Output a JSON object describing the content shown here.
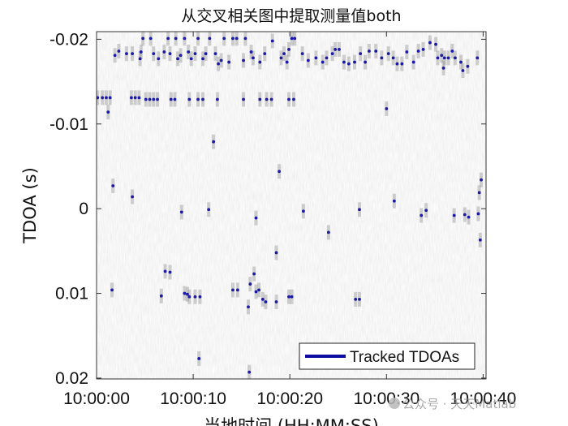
{
  "chart_data": {
    "type": "scatter",
    "title": "从交叉相关图中提取测量值both",
    "xlabel": "当地时间 (HH:MM:SS)",
    "ylabel": "TDOA (s)",
    "xlim": [
      0,
      40.3
    ],
    "ylim": [
      -0.0209,
      0.0201
    ],
    "y_direction": "reversed",
    "grid": false,
    "background": "grayscale cross-correlation image",
    "x_ticks": [
      0,
      10,
      20,
      30,
      40
    ],
    "x_tick_labels": [
      "10:00:00",
      "10:00:10",
      "10:00:20",
      "10:00:30",
      "10:00:40"
    ],
    "y_ticks": [
      -0.02,
      -0.01,
      0,
      0.01,
      0.02
    ],
    "y_tick_labels": [
      "-0.02",
      "-0.01",
      "0",
      "0.01",
      "0.02"
    ],
    "legend": {
      "entries": [
        "Tracked TDOAs"
      ],
      "location": "bottom-right"
    },
    "series": [
      {
        "name": "Tracked TDOAs",
        "color": "#1a1aa6",
        "x_unit": "seconds after 10:00:00",
        "points": [
          [
            1.9,
            -0.0181
          ],
          [
            2.3,
            -0.0186
          ],
          [
            3.1,
            -0.0183
          ],
          [
            3.7,
            -0.0183
          ],
          [
            4.5,
            -0.0177
          ],
          [
            4.6,
            -0.0185
          ],
          [
            4.8,
            -0.0201
          ],
          [
            5.6,
            -0.0201
          ],
          [
            5.9,
            -0.0183
          ],
          [
            6.4,
            -0.0177
          ],
          [
            7.0,
            -0.0185
          ],
          [
            7.6,
            -0.0183
          ],
          [
            7.4,
            -0.0201
          ],
          [
            8.2,
            -0.0201
          ],
          [
            8.4,
            -0.0177
          ],
          [
            8.7,
            -0.0181
          ],
          [
            9.1,
            -0.0201
          ],
          [
            9.5,
            -0.0185
          ],
          [
            9.8,
            -0.0177
          ],
          [
            10.2,
            -0.0183
          ],
          [
            10.5,
            -0.0201
          ],
          [
            11.0,
            -0.0177
          ],
          [
            11.3,
            -0.0183
          ],
          [
            11.7,
            -0.0201
          ],
          [
            12.3,
            -0.0183
          ],
          [
            12.6,
            -0.0171
          ],
          [
            12.9,
            -0.0175
          ],
          [
            13.2,
            -0.0201
          ],
          [
            13.7,
            -0.0173
          ],
          [
            14.1,
            -0.0201
          ],
          [
            14.5,
            -0.0201
          ],
          [
            15.2,
            -0.0175
          ],
          [
            15.4,
            -0.0201
          ],
          [
            16.0,
            -0.0185
          ],
          [
            16.2,
            -0.0178
          ],
          [
            16.9,
            -0.0173
          ],
          [
            17.4,
            -0.0183
          ],
          [
            18.2,
            -0.0198
          ],
          [
            19.1,
            -0.0178
          ],
          [
            19.4,
            -0.0183
          ],
          [
            19.7,
            -0.0173
          ],
          [
            19.9,
            -0.0188
          ],
          [
            20.2,
            -0.0201
          ],
          [
            20.5,
            -0.0201
          ],
          [
            21.3,
            -0.0183
          ],
          [
            21.9,
            -0.0175
          ],
          [
            22.7,
            -0.0178
          ],
          [
            23.4,
            -0.0173
          ],
          [
            23.8,
            -0.0178
          ],
          [
            24.4,
            -0.0183
          ],
          [
            24.7,
            -0.0188
          ],
          [
            25.1,
            -0.0188
          ],
          [
            25.6,
            -0.0173
          ],
          [
            26.1,
            -0.0171
          ],
          [
            26.7,
            -0.0173
          ],
          [
            27.3,
            -0.0183
          ],
          [
            27.8,
            -0.0173
          ],
          [
            28.2,
            -0.0186
          ],
          [
            28.9,
            -0.0186
          ],
          [
            29.5,
            -0.0178
          ],
          [
            30.2,
            -0.0183
          ],
          [
            30.7,
            -0.0178
          ],
          [
            31.1,
            -0.0171
          ],
          [
            31.6,
            -0.0171
          ],
          [
            32.1,
            -0.0185
          ],
          [
            32.8,
            -0.0173
          ],
          [
            33.3,
            -0.0186
          ],
          [
            33.8,
            -0.0188
          ],
          [
            34.5,
            -0.0196
          ],
          [
            35.1,
            -0.0194
          ],
          [
            35.3,
            -0.0178
          ],
          [
            35.7,
            -0.0181
          ],
          [
            36.0,
            -0.0178
          ],
          [
            36.4,
            -0.0178
          ],
          [
            36.8,
            -0.0186
          ],
          [
            37.1,
            -0.0178
          ],
          [
            37.7,
            -0.0173
          ],
          [
            38.4,
            -0.0168
          ],
          [
            39.4,
            -0.0178
          ],
          [
            35.9,
            -0.0166
          ],
          [
            37.9,
            -0.0163
          ],
          [
            0.1,
            -0.0131
          ],
          [
            0.6,
            -0.0131
          ],
          [
            1.0,
            -0.0131
          ],
          [
            1.4,
            -0.0131
          ],
          [
            1.2,
            -0.0114
          ],
          [
            3.6,
            -0.0131
          ],
          [
            4.0,
            -0.0131
          ],
          [
            4.4,
            -0.0131
          ],
          [
            5.1,
            -0.0129
          ],
          [
            5.5,
            -0.0129
          ],
          [
            5.9,
            -0.0129
          ],
          [
            6.3,
            -0.0129
          ],
          [
            7.7,
            -0.0129
          ],
          [
            8.1,
            -0.0129
          ],
          [
            9.6,
            -0.0129
          ],
          [
            10.5,
            -0.0129
          ],
          [
            11.0,
            -0.0129
          ],
          [
            12.5,
            -0.0129
          ],
          [
            15.2,
            -0.0129
          ],
          [
            16.9,
            -0.0129
          ],
          [
            17.6,
            -0.0129
          ],
          [
            18.1,
            -0.0129
          ],
          [
            19.9,
            -0.0129
          ],
          [
            20.4,
            -0.0129
          ],
          [
            30.0,
            -0.0118
          ],
          [
            12.1,
            -0.0079
          ],
          [
            18.9,
            -0.0044
          ],
          [
            1.7,
            -0.0027
          ],
          [
            3.7,
            -0.0014
          ],
          [
            8.8,
            0.0004
          ],
          [
            11.6,
            0.0001
          ],
          [
            16.5,
            0.0011
          ],
          [
            21.4,
            0.0003
          ],
          [
            24.0,
            0.0028
          ],
          [
            27.2,
            0.0001
          ],
          [
            30.8,
            -0.0009
          ],
          [
            33.6,
            0.0008
          ],
          [
            34.1,
            0.0002
          ],
          [
            37.0,
            0.0008
          ],
          [
            38.1,
            0.0007
          ],
          [
            38.5,
            0.001
          ],
          [
            39.5,
            0.0006
          ],
          [
            39.6,
            -0.0019
          ],
          [
            39.8,
            -0.0034
          ],
          [
            39.7,
            0.0037
          ],
          [
            1.6,
            0.0096
          ],
          [
            7.1,
            0.0074
          ],
          [
            7.6,
            0.0075
          ],
          [
            6.7,
            0.0103
          ],
          [
            9.1,
            0.01
          ],
          [
            9.4,
            0.0101
          ],
          [
            9.6,
            0.0104
          ],
          [
            10.2,
            0.0104
          ],
          [
            10.7,
            0.0104
          ],
          [
            14.1,
            0.0096
          ],
          [
            14.6,
            0.0096
          ],
          [
            15.7,
            0.0116
          ],
          [
            15.9,
            0.0089
          ],
          [
            16.3,
            0.0077
          ],
          [
            16.5,
            0.0098
          ],
          [
            16.8,
            0.0096
          ],
          [
            17.2,
            0.0107
          ],
          [
            17.5,
            0.011
          ],
          [
            18.6,
            0.011
          ],
          [
            19.9,
            0.0104
          ],
          [
            20.2,
            0.0104
          ],
          [
            18.6,
            0.0052
          ],
          [
            26.8,
            0.0107
          ],
          [
            27.2,
            0.0107
          ],
          [
            10.6,
            0.0177
          ],
          [
            15.8,
            0.0193
          ]
        ]
      }
    ]
  },
  "watermark": {
    "text": "公众号 · 天天Matlab"
  }
}
